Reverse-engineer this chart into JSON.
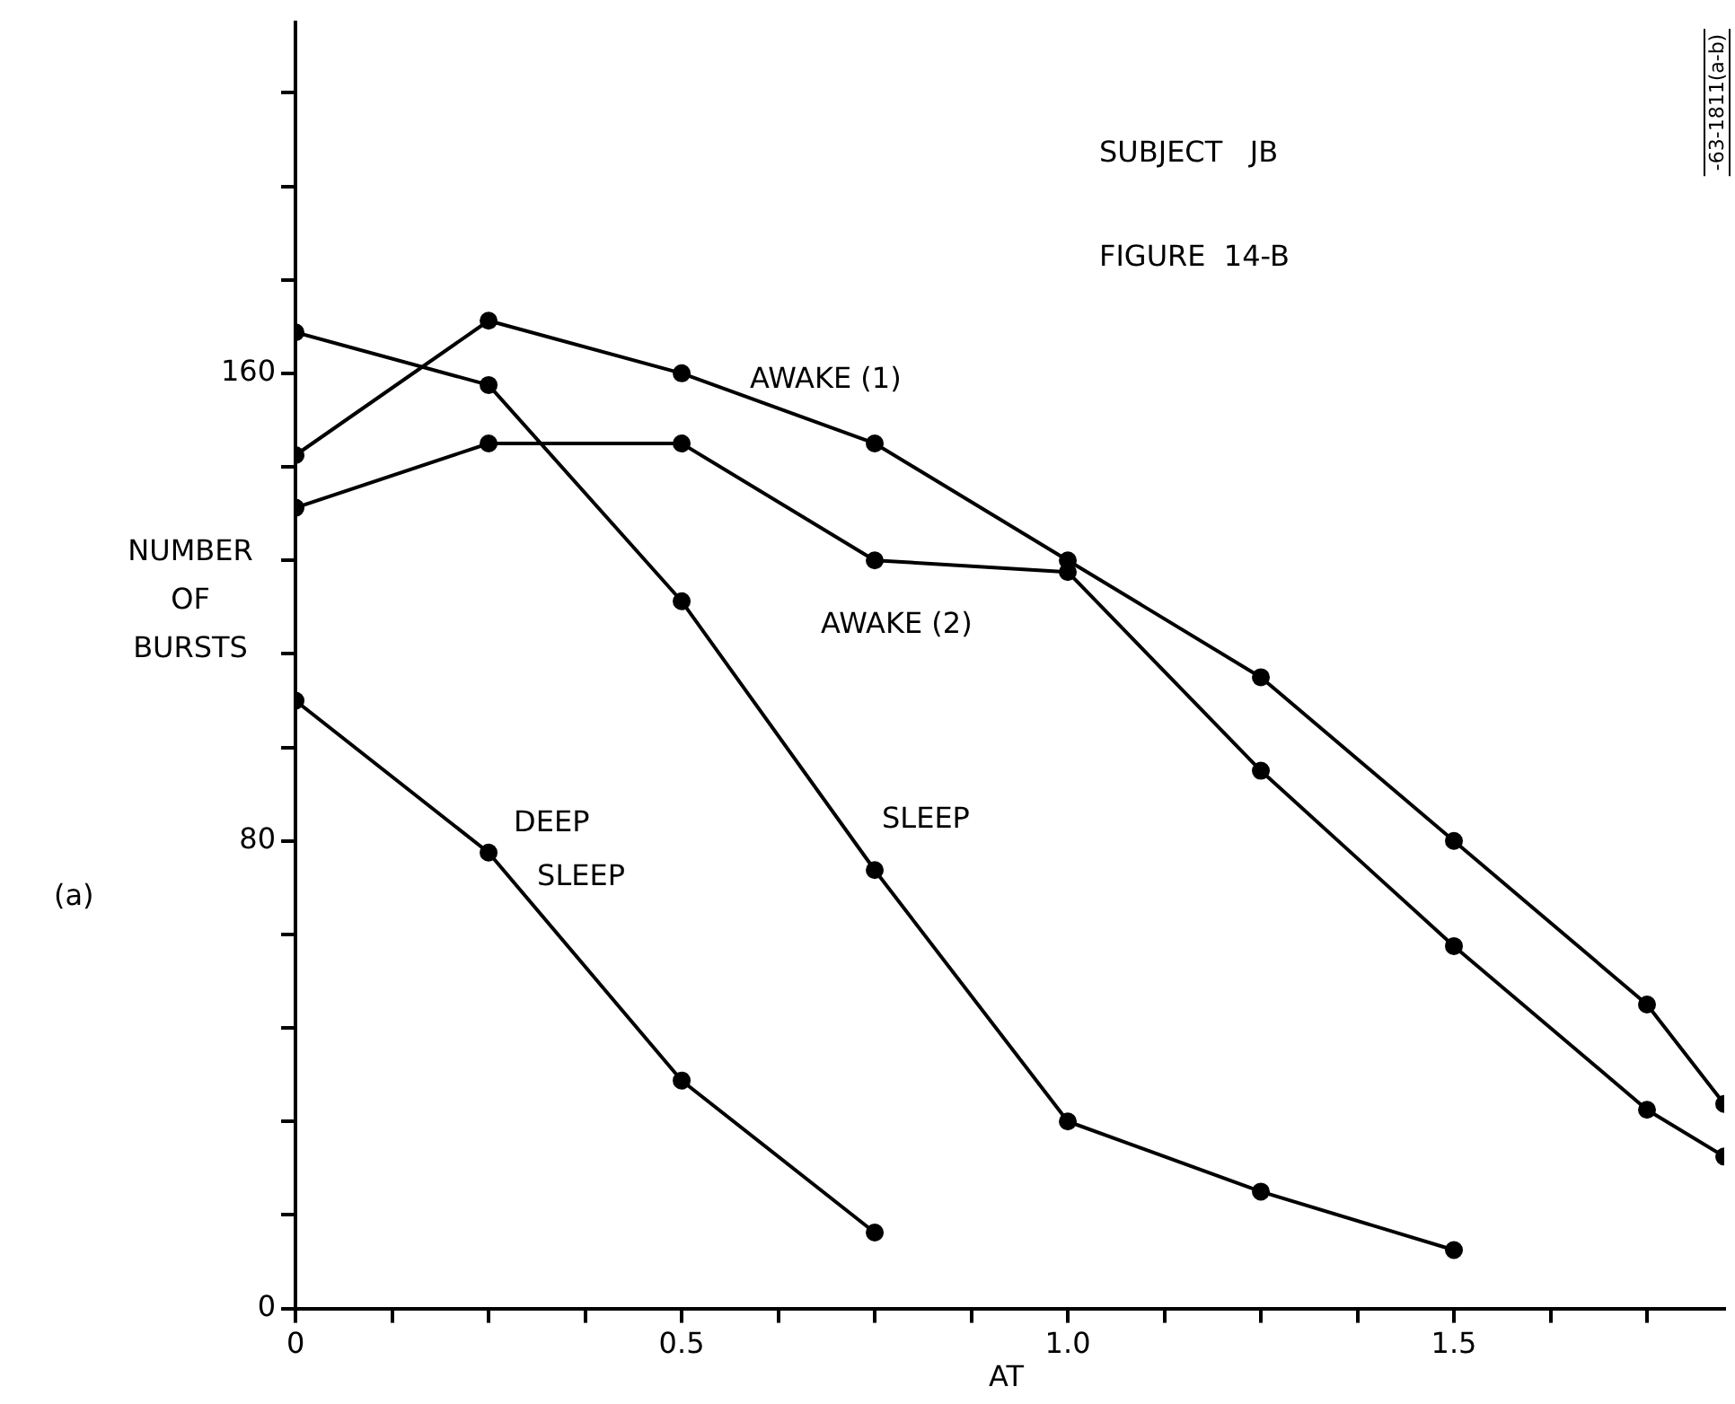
{
  "chart_data": {
    "type": "line",
    "xlabel": "AT",
    "ylabel": "NUMBER OF BURSTS",
    "annotations": [
      "SUBJECT   JB",
      "FIGURE  14-B",
      "(a)",
      "-63-1811(a-b)"
    ],
    "series": [
      {
        "name": "AWAKE (1)",
        "color": "#000000",
        "x": [
          0,
          0.25,
          0.5,
          0.75,
          1.0,
          1.25,
          1.5,
          1.75,
          1.85
        ],
        "values": [
          146,
          169,
          160,
          148,
          128,
          108,
          80,
          52,
          35
        ]
      },
      {
        "name": "AWAKE (2)",
        "color": "#000000",
        "x": [
          0,
          0.25,
          0.5,
          0.75,
          1.0,
          1.25,
          1.5,
          1.75,
          1.85
        ],
        "values": [
          137,
          148,
          148,
          128,
          126,
          92,
          62,
          34,
          26
        ]
      },
      {
        "name": "SLEEP",
        "color": "#000000",
        "x": [
          0,
          0.25,
          0.5,
          0.75,
          1.0,
          1.25,
          1.5
        ],
        "values": [
          167,
          158,
          121,
          75,
          32,
          20,
          10
        ]
      },
      {
        "name": "DEEP SLEEP",
        "color": "#000000",
        "x": [
          0,
          0.25,
          0.5,
          0.75
        ],
        "values": [
          104,
          78,
          39,
          13
        ]
      }
    ],
    "xlim": [
      0,
      1.85
    ],
    "xticks": [
      0,
      {
        "value": 0.125,
        "label": null
      },
      {
        "value": 0.25,
        "label": null
      },
      {
        "value": 0.375,
        "label": null
      },
      0.5,
      {
        "value": 0.625,
        "label": null
      },
      {
        "value": 0.75,
        "label": null
      },
      {
        "value": 0.875,
        "label": null
      },
      {
        "value": 1,
        "label": "1.0"
      },
      {
        "value": 1.125,
        "label": null
      },
      {
        "value": 1.25,
        "label": null
      },
      {
        "value": 1.375,
        "label": null
      },
      1.5,
      {
        "value": 1.625,
        "label": null
      },
      {
        "value": 1.75,
        "label": null
      }
    ],
    "ylim": [
      0,
      220
    ],
    "yticks": [
      0,
      {
        "value": 16,
        "label": null
      },
      {
        "value": 32,
        "label": null
      },
      {
        "value": 48,
        "label": null
      },
      {
        "value": 64,
        "label": null
      },
      80,
      {
        "value": 96,
        "label": null
      },
      {
        "value": 112,
        "label": null
      },
      {
        "value": 128,
        "label": null
      },
      {
        "value": 144,
        "label": null
      },
      160,
      {
        "value": 176,
        "label": null
      },
      {
        "value": 192,
        "label": null
      },
      {
        "value": 208,
        "label": null
      }
    ],
    "grid": false,
    "legend": false,
    "marker": "circle",
    "line_style": "solid"
  }
}
